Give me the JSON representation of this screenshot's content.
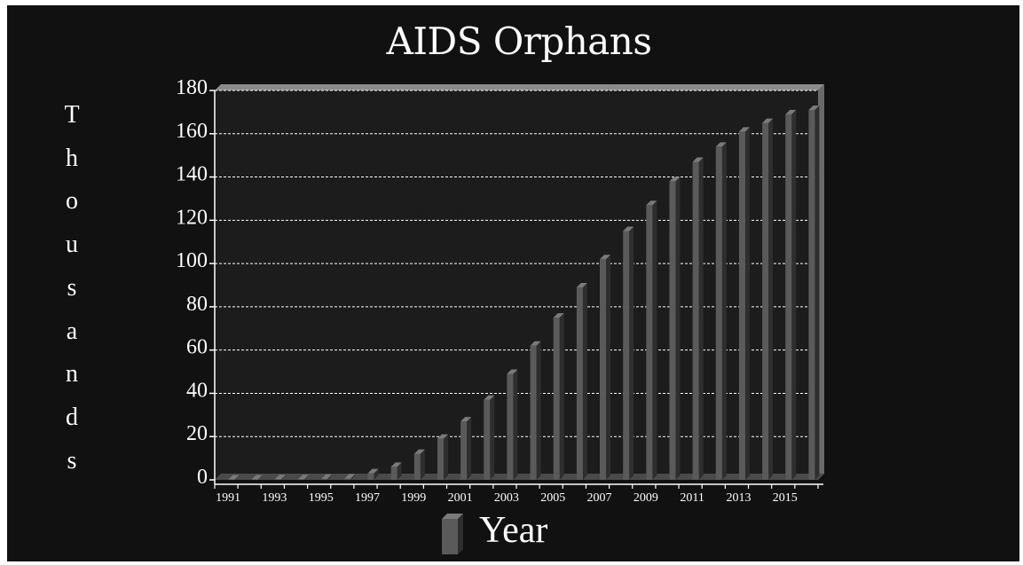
{
  "chart_data": {
    "type": "bar",
    "title": "AIDS Orphans",
    "ylabel": "Thousands",
    "legend": [
      "Year"
    ],
    "categories": [
      1991,
      1992,
      1993,
      1994,
      1995,
      1996,
      1997,
      1998,
      1999,
      2000,
      2001,
      2002,
      2003,
      2004,
      2005,
      2006,
      2007,
      2008,
      2009,
      2010,
      2011,
      2012,
      2013,
      2014,
      2015,
      2016
    ],
    "x_tick_labels": [
      "1991",
      "1993",
      "1995",
      "1997",
      "1999",
      "2001",
      "2003",
      "2005",
      "2007",
      "2009",
      "2011",
      "2013",
      "2015"
    ],
    "y_tick_labels": [
      "0",
      "20",
      "40",
      "60",
      "80",
      "100",
      "120",
      "140",
      "160",
      "180"
    ],
    "values": [
      0.2,
      0.2,
      0.3,
      0.3,
      0.5,
      0.6,
      3,
      6,
      12,
      19,
      27,
      37,
      49,
      62,
      75,
      89,
      102,
      115,
      127,
      138,
      147,
      154,
      161,
      165,
      169,
      171
    ],
    "ylim": [
      0,
      180
    ],
    "grid": true,
    "legend_position": "bottom",
    "colors": {
      "background": "#111111",
      "plot": "#1c1c1c",
      "bar": "#5a5a5a",
      "bar_side": "#2e2e2e",
      "bar_top": "#7a7a7a",
      "grid": "#ffffff"
    }
  }
}
